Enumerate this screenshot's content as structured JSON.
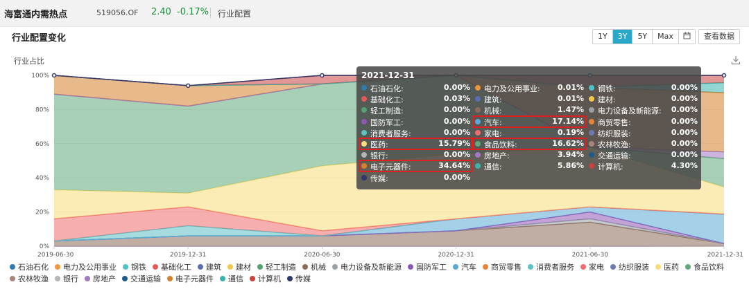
{
  "header": {
    "fund_name": "海富通内需热点",
    "fund_code": "519056.OF",
    "price": "2.40",
    "change": "-0.17%",
    "tab": "行业配置"
  },
  "panel": {
    "title": "行业配置变化",
    "ranges": [
      "1Y",
      "3Y",
      "5Y",
      "Max"
    ],
    "active_range": "3Y",
    "calendar_icon": "calendar-icon",
    "view_data": "查看数据",
    "download_icon": "download-icon"
  },
  "chart_data": {
    "type": "area",
    "stacked": true,
    "ylabel": "行业占比",
    "x": [
      "2019-06-30",
      "2019-12-31",
      "2020-06-30",
      "2020-12-31",
      "2021-06-30",
      "2021-12-31"
    ],
    "ylim": [
      0,
      100
    ],
    "yticks": [
      "0%",
      "20%",
      "40%",
      "60%",
      "80%",
      "100%"
    ],
    "legend_position": "bottom",
    "colors": {
      "ink": "#333333",
      "axis": "#cccccc",
      "grid": "#eeeeee"
    },
    "series": [
      {
        "name": "石油石化",
        "color": "#2f7db0",
        "values": [
          0,
          0,
          0,
          0,
          0,
          0
        ]
      },
      {
        "name": "电力及公用事业",
        "color": "#f0953a",
        "values": [
          0,
          0,
          0,
          0,
          0,
          0.01
        ]
      },
      {
        "name": "钢铁",
        "color": "#4fc3c9",
        "values": [
          0,
          0,
          0,
          0,
          0,
          0
        ]
      },
      {
        "name": "基础化工",
        "color": "#e45a5a",
        "values": [
          0,
          0,
          0,
          0,
          0,
          0.03
        ]
      },
      {
        "name": "建筑",
        "color": "#5a6db5",
        "values": [
          0,
          0,
          0,
          0,
          0,
          0.01
        ]
      },
      {
        "name": "建材",
        "color": "#f2c84a",
        "values": [
          0,
          0,
          0,
          0,
          0,
          0
        ]
      },
      {
        "name": "轻工制造",
        "color": "#55a372",
        "values": [
          0,
          0,
          0,
          0,
          0,
          0
        ]
      },
      {
        "name": "机械",
        "color": "#8c6b5a",
        "values": [
          3,
          6,
          6,
          9,
          14,
          1.47
        ]
      },
      {
        "name": "电力设备及新能源",
        "color": "#9aa0a6",
        "values": [
          0,
          0,
          0,
          0,
          2,
          0
        ]
      },
      {
        "name": "国防军工",
        "color": "#8e58b5",
        "values": [
          0,
          0,
          0,
          0,
          4,
          0
        ]
      },
      {
        "name": "汽车",
        "color": "#59a9d6",
        "values": [
          0,
          0,
          0,
          7,
          3,
          17.14
        ]
      },
      {
        "name": "商贸零售",
        "color": "#e8843a",
        "values": [
          0,
          0,
          0,
          0,
          0,
          0
        ]
      },
      {
        "name": "消费者服务",
        "color": "#5cc0c4",
        "values": [
          0,
          6,
          0,
          0,
          0,
          0
        ]
      },
      {
        "name": "家电",
        "color": "#f06b6b",
        "values": [
          13,
          11,
          3,
          0,
          0,
          0.19
        ]
      },
      {
        "name": "纺织服装",
        "color": "#6c7ab0",
        "values": [
          0,
          0,
          0,
          0,
          0,
          0
        ]
      },
      {
        "name": "医药",
        "color": "#f7dc7a",
        "values": [
          17,
          8,
          38,
          38,
          35,
          15.79
        ]
      },
      {
        "name": "食品饮料",
        "color": "#5fa97a",
        "values": [
          56,
          51,
          48,
          46,
          0,
          16.62
        ]
      },
      {
        "name": "农林牧渔",
        "color": "#a8877a",
        "values": [
          0,
          0,
          0,
          0,
          0,
          0
        ]
      },
      {
        "name": "银行",
        "color": "#b5b5b5",
        "values": [
          0,
          0,
          0,
          0,
          0,
          0
        ]
      },
      {
        "name": "房地产",
        "color": "#a079c4",
        "values": [
          0,
          0,
          0,
          0,
          0,
          3.94
        ]
      },
      {
        "name": "交通运输",
        "color": "#1f5a8a",
        "values": [
          0,
          0,
          0,
          0,
          0,
          0
        ]
      },
      {
        "name": "电子元器件",
        "color": "#d6802c",
        "values": [
          11,
          12,
          0,
          0,
          35,
          34.64
        ]
      },
      {
        "name": "通信",
        "color": "#3bb3ad",
        "values": [
          0,
          0,
          0,
          0,
          0,
          5.86
        ]
      },
      {
        "name": "计算机",
        "color": "#c9423e",
        "values": [
          0,
          0,
          5,
          0,
          7,
          4.3
        ]
      },
      {
        "name": "传媒",
        "color": "#2e3a6b",
        "values": [
          0,
          0,
          0,
          0,
          0,
          0
        ]
      }
    ]
  },
  "tooltip": {
    "date": "2021-12-31",
    "items": [
      {
        "name": "石油石化:",
        "value": "0.00%",
        "color": "#2f7db0"
      },
      {
        "name": "电力及公用事业:",
        "value": "0.01%",
        "color": "#f0953a"
      },
      {
        "name": "钢铁:",
        "value": "0.00%",
        "color": "#4fc3c9"
      },
      {
        "name": "基础化工:",
        "value": "0.03%",
        "color": "#e45a5a"
      },
      {
        "name": "建筑:",
        "value": "0.01%",
        "color": "#5a6db5"
      },
      {
        "name": "建材:",
        "value": "0.00%",
        "color": "#f2c84a"
      },
      {
        "name": "轻工制造:",
        "value": "0.00%",
        "color": "#55a372"
      },
      {
        "name": "机械:",
        "value": "1.47%",
        "color": "#8c6b5a"
      },
      {
        "name": "电力设备及新能源:",
        "value": "0.00%",
        "color": "#9aa0a6"
      },
      {
        "name": "国防军工:",
        "value": "0.00%",
        "color": "#8e58b5"
      },
      {
        "name": "汽车:",
        "value": "17.14%",
        "color": "#59a9d6"
      },
      {
        "name": "商贸零售:",
        "value": "0.00%",
        "color": "#e8843a"
      },
      {
        "name": "消费者服务:",
        "value": "0.00%",
        "color": "#5cc0c4"
      },
      {
        "name": "家电:",
        "value": "0.19%",
        "color": "#f06b6b"
      },
      {
        "name": "纺织服装:",
        "value": "0.00%",
        "color": "#6c7ab0"
      },
      {
        "name": "医药:",
        "value": "15.79%",
        "color": "#f7dc7a"
      },
      {
        "name": "食品饮料:",
        "value": "16.62%",
        "color": "#5fa97a"
      },
      {
        "name": "农林牧渔:",
        "value": "0.00%",
        "color": "#a8877a"
      },
      {
        "name": "银行:",
        "value": "0.00%",
        "color": "#b5b5b5"
      },
      {
        "name": "房地产:",
        "value": "3.94%",
        "color": "#a079c4"
      },
      {
        "name": "交通运输:",
        "value": "0.00%",
        "color": "#1f5a8a"
      },
      {
        "name": "电子元器件:",
        "value": "34.64%",
        "color": "#d6802c"
      },
      {
        "name": "通信:",
        "value": "5.86%",
        "color": "#3bb3ad"
      },
      {
        "name": "计算机:",
        "value": "4.30%",
        "color": "#c9423e"
      },
      {
        "name": "传媒:",
        "value": "0.00%",
        "color": "#2e3a6b"
      }
    ],
    "highlighted": [
      "汽车:",
      "医药:",
      "食品饮料:",
      "电子元器件:"
    ]
  },
  "legend": {
    "rows": [
      [
        "石油石化",
        "电力及公用事业",
        "钢铁",
        "基础化工",
        "建筑",
        "建材",
        "轻工制造",
        "机械",
        "电力设备及新能源",
        "国防军工",
        "汽车",
        "商贸零售",
        "消费者服务",
        "家电",
        "纺织服装",
        "医药",
        "食品饮料"
      ],
      [
        "农林牧渔",
        "银行",
        "房地产",
        "交通运输",
        "电子元器件",
        "通信",
        "计算机",
        "传媒"
      ]
    ]
  }
}
